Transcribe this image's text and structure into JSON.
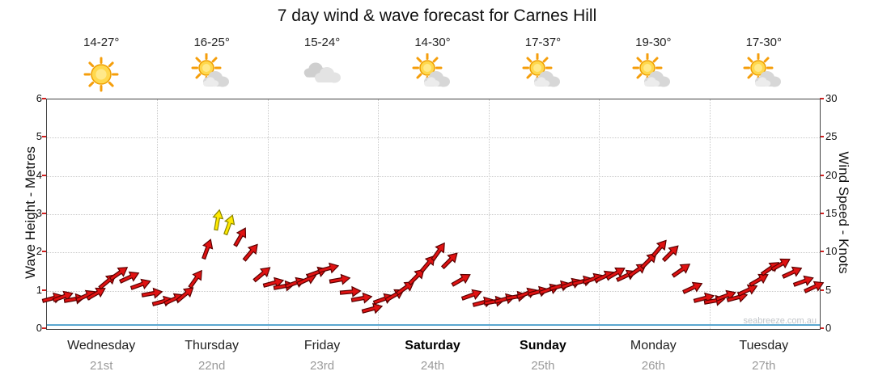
{
  "title": "7 day wind & wave forecast for Carnes Hill",
  "watermark": "seabreeze.com.au",
  "left_axis": {
    "label": "Wave Height - Metres",
    "ticks": [
      0,
      1,
      2,
      3,
      4,
      5,
      6
    ],
    "max": 6
  },
  "right_axis": {
    "label": "Wind Speed - Knots",
    "ticks": [
      0,
      5,
      10,
      15,
      20,
      25,
      30
    ],
    "max": 30
  },
  "days": [
    {
      "name": "Wednesday",
      "date": "21st",
      "temp": "14-27°",
      "icon": "sunny",
      "bold": false
    },
    {
      "name": "Thursday",
      "date": "22nd",
      "temp": "16-25°",
      "icon": "partly-cloudy",
      "bold": false
    },
    {
      "name": "Friday",
      "date": "23rd",
      "temp": "15-24°",
      "icon": "cloudy",
      "bold": false
    },
    {
      "name": "Saturday",
      "date": "24th",
      "temp": "14-30°",
      "icon": "partly-cloudy",
      "bold": true
    },
    {
      "name": "Sunday",
      "date": "25th",
      "temp": "17-37°",
      "icon": "partly-cloudy",
      "bold": true
    },
    {
      "name": "Monday",
      "date": "26th",
      "temp": "19-30°",
      "icon": "partly-cloudy",
      "bold": false
    },
    {
      "name": "Tuesday",
      "date": "27th",
      "temp": "17-30°",
      "icon": "partly-cloudy",
      "bold": false
    }
  ],
  "chart_data": {
    "type": "wind-arrow-timeseries",
    "title": "7 day wind & wave forecast for Carnes Hill",
    "categories": [
      "Wednesday 21st",
      "Thursday 22nd",
      "Friday 23rd",
      "Saturday 24th",
      "Sunday 25th",
      "Monday 26th",
      "Tuesday 27th"
    ],
    "samples_per_day": 10,
    "ylim_left_metres": [
      0,
      6
    ],
    "ylim_right_knots": [
      0,
      30
    ],
    "grid": "dotted",
    "wave_height_series_m": 0.1,
    "colors": {
      "arrow": "#e01212",
      "arrow_outline": "#5a0000",
      "high_arrow": "#ffe900",
      "high_arrow_outline": "#8a8400",
      "wave_line": "#5aa7d0",
      "tick": "#d02020"
    },
    "points_legend": "[wind_speed_knots, arrow_direction_deg, strong_flag]",
    "points": [
      [
        4.0,
        -15
      ],
      [
        4.2,
        -20
      ],
      [
        3.9,
        -10
      ],
      [
        4.3,
        -25
      ],
      [
        4.6,
        -30
      ],
      [
        6.2,
        -40
      ],
      [
        7.3,
        -35
      ],
      [
        6.8,
        -25
      ],
      [
        5.8,
        -20
      ],
      [
        4.6,
        -10
      ],
      [
        3.6,
        -15
      ],
      [
        3.9,
        -25
      ],
      [
        4.5,
        -40
      ],
      [
        6.5,
        -55
      ],
      [
        10.5,
        -70
      ],
      [
        14.3,
        -80,
        1
      ],
      [
        13.6,
        -70,
        1
      ],
      [
        12.0,
        -60
      ],
      [
        10.0,
        -50
      ],
      [
        7.2,
        -40
      ],
      [
        6.0,
        -15
      ],
      [
        5.6,
        -10
      ],
      [
        6.0,
        -20
      ],
      [
        6.4,
        -25
      ],
      [
        7.4,
        -20
      ],
      [
        7.9,
        -15
      ],
      [
        6.4,
        -10
      ],
      [
        4.9,
        -5
      ],
      [
        4.0,
        -10
      ],
      [
        2.6,
        -15
      ],
      [
        3.9,
        -20
      ],
      [
        4.4,
        -30
      ],
      [
        5.4,
        -35
      ],
      [
        6.9,
        -45
      ],
      [
        8.6,
        -50
      ],
      [
        10.1,
        -55
      ],
      [
        9.0,
        -45
      ],
      [
        6.4,
        -30
      ],
      [
        4.4,
        -20
      ],
      [
        3.5,
        -15
      ],
      [
        3.6,
        -10
      ],
      [
        3.9,
        -15
      ],
      [
        4.2,
        -10
      ],
      [
        4.6,
        -20
      ],
      [
        4.9,
        -15
      ],
      [
        5.2,
        -20
      ],
      [
        5.6,
        -15
      ],
      [
        5.9,
        -20
      ],
      [
        6.2,
        -15
      ],
      [
        6.5,
        -20
      ],
      [
        6.9,
        -25
      ],
      [
        7.3,
        -30
      ],
      [
        7.0,
        -25
      ],
      [
        7.7,
        -35
      ],
      [
        9.0,
        -45
      ],
      [
        10.6,
        -50
      ],
      [
        9.9,
        -45
      ],
      [
        7.7,
        -35
      ],
      [
        5.4,
        -25
      ],
      [
        4.0,
        -15
      ],
      [
        3.7,
        -10
      ],
      [
        4.3,
        -20
      ],
      [
        4.1,
        -15
      ],
      [
        5.1,
        -25
      ],
      [
        6.4,
        -30
      ],
      [
        7.9,
        -35
      ],
      [
        8.5,
        -30
      ],
      [
        7.4,
        -25
      ],
      [
        6.2,
        -20
      ],
      [
        5.5,
        -25
      ]
    ]
  }
}
